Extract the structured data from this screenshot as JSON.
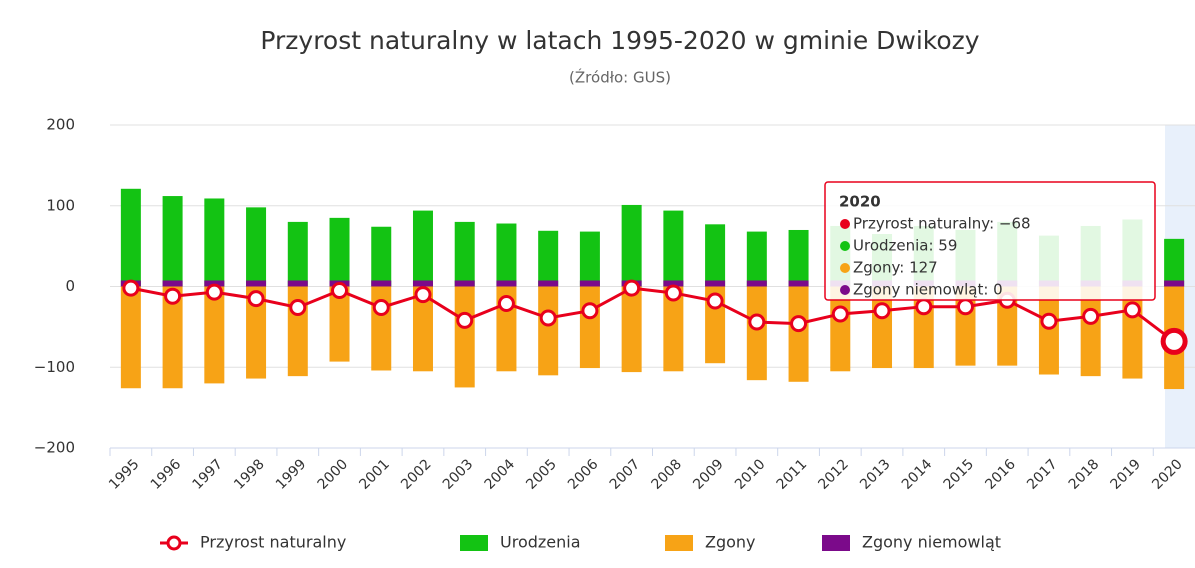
{
  "chart_data": {
    "type": "bar",
    "title": "Przyrost naturalny w latach 1995-2020 w gminie Dwikozy",
    "subtitle": "(Źródło: GUS)",
    "categories": [
      "1995",
      "1996",
      "1997",
      "1998",
      "1999",
      "2000",
      "2001",
      "2002",
      "2003",
      "2004",
      "2005",
      "2006",
      "2007",
      "2008",
      "2009",
      "2010",
      "2011",
      "2012",
      "2013",
      "2014",
      "2015",
      "2016",
      "2017",
      "2018",
      "2019",
      "2020"
    ],
    "series": [
      {
        "name": "Przyrost naturalny",
        "type": "line",
        "color": "#e8001c",
        "values": [
          -2,
          -12,
          -7,
          -15,
          -26,
          -5,
          -26,
          -10,
          -42,
          -21,
          -39,
          -30,
          -2,
          -8,
          -18,
          -44,
          -46,
          -34,
          -30,
          -25,
          -25,
          -17,
          -43,
          -37,
          -29,
          -68
        ]
      },
      {
        "name": "Urodzenia",
        "type": "bar",
        "color": "#13c313",
        "values": [
          121,
          112,
          109,
          98,
          80,
          85,
          74,
          94,
          80,
          78,
          69,
          68,
          101,
          94,
          77,
          68,
          70,
          75,
          65,
          75,
          70,
          80,
          63,
          75,
          83,
          59
        ]
      },
      {
        "name": "Zgony",
        "type": "bar",
        "color": "#f7a316",
        "values": [
          -126,
          -126,
          -120,
          -114,
          -111,
          -93,
          -104,
          -105,
          -125,
          -105,
          -110,
          -101,
          -106,
          -105,
          -95,
          -116,
          -118,
          -105,
          -101,
          -101,
          -98,
          -98,
          -109,
          -111,
          -114,
          -127
        ]
      },
      {
        "name": "Zgony niemowląt",
        "type": "bar",
        "color": "#7b0a8a",
        "values": [
          0,
          0,
          0,
          0,
          0,
          0,
          0,
          0,
          0,
          0,
          0,
          0,
          0,
          0,
          0,
          0,
          0,
          0,
          0,
          0,
          0,
          0,
          0,
          0,
          0,
          0
        ]
      }
    ],
    "ylim": [
      -200,
      200
    ],
    "yticks": [
      {
        "value": -200,
        "label": "−200"
      },
      {
        "value": -100,
        "label": "−100"
      },
      0,
      100,
      200
    ],
    "grid": true,
    "legend": "bottom",
    "tooltip": {
      "title": "2020",
      "lines": [
        "Przyrost naturalny: −68",
        "Urodzenia: 59",
        "Zgony: 127",
        "Zgony niemowląt: 0"
      ]
    }
  }
}
